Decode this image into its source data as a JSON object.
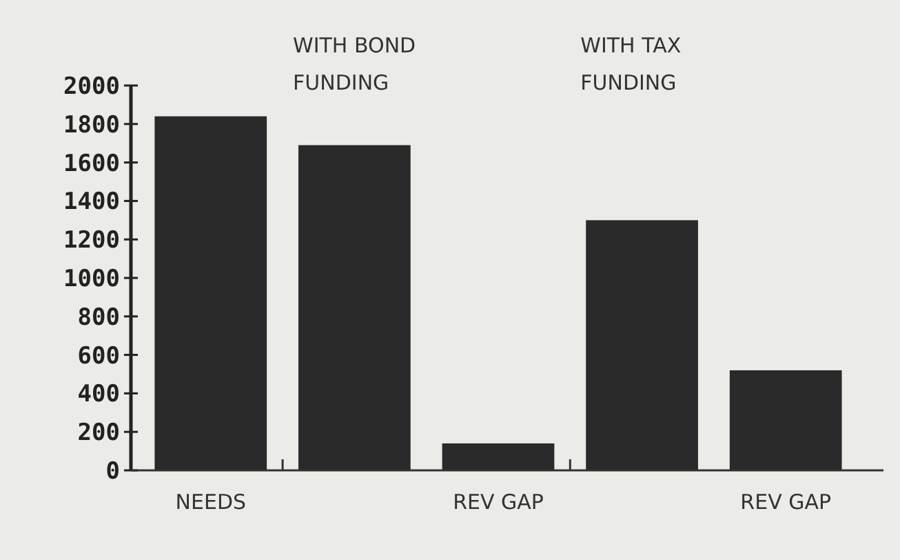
{
  "chart_data": {
    "type": "bar",
    "categories": [
      "NEEDS",
      null,
      "REV GAP",
      null,
      "REV GAP"
    ],
    "values": [
      1840,
      1690,
      140,
      1300,
      520
    ],
    "color": "#2a2a2a",
    "ylim": [
      0,
      2000
    ],
    "yticks": [
      0,
      200,
      400,
      600,
      800,
      1000,
      1200,
      1400,
      1600,
      1800,
      2000
    ],
    "grid": false,
    "annotations": [
      "WITH BOND FUNDING",
      "WITH TAX FUNDING"
    ]
  }
}
